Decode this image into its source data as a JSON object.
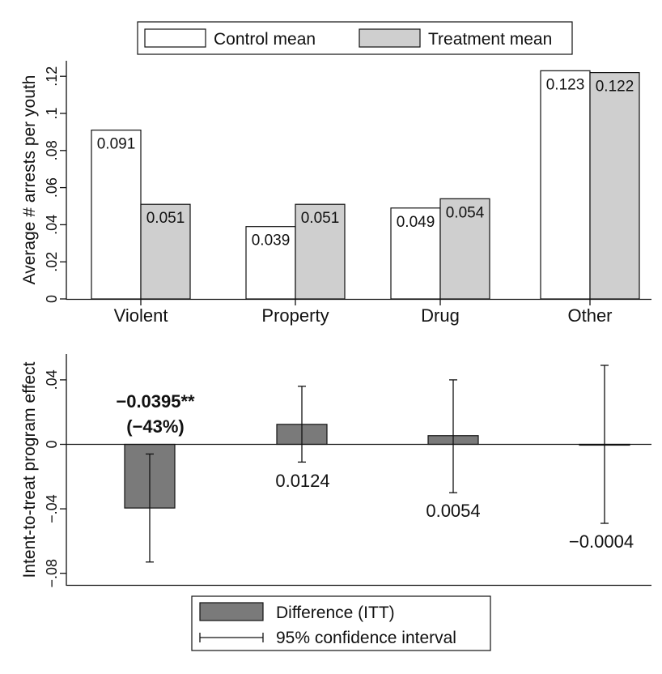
{
  "chart_data": [
    {
      "type": "bar",
      "categories": [
        "Violent",
        "Property",
        "Drug",
        "Other"
      ],
      "series": [
        {
          "name": "Control mean",
          "values": [
            0.091,
            0.039,
            0.049,
            0.123
          ],
          "color": "#ffffff"
        },
        {
          "name": "Treatment mean",
          "values": [
            0.051,
            0.051,
            0.054,
            0.122
          ],
          "color": "#cfcfcf"
        }
      ],
      "data_labels": [
        [
          "0.091",
          "0.039",
          "0.049",
          "0.123"
        ],
        [
          "0.051",
          "0.051",
          "0.054",
          "0.122"
        ]
      ],
      "ylabel": "Average # arrests per youth",
      "ylim": [
        0,
        0.13
      ],
      "yticks": [
        0,
        0.02,
        0.04,
        0.06,
        0.08,
        0.1,
        0.12
      ],
      "ytick_labels": [
        "0",
        ".02",
        ".04",
        ".06",
        ".08",
        ".1",
        ".12"
      ],
      "legend_position": "top"
    },
    {
      "type": "bar",
      "categories": [
        "Violent",
        "Property",
        "Drug",
        "Other"
      ],
      "series": [
        {
          "name": "Difference (ITT)",
          "values": [
            -0.0395,
            0.0124,
            0.0054,
            -0.0004
          ],
          "color": "#7a7a7a"
        }
      ],
      "ci_series_name": "95% confidence interval",
      "ci_low": [
        -0.073,
        -0.011,
        -0.03,
        -0.049
      ],
      "ci_high": [
        -0.006,
        0.036,
        0.04,
        0.049
      ],
      "value_labels": [
        [
          "−0.0395**",
          "(−43%)"
        ],
        [
          "0.0124"
        ],
        [
          "0.0054"
        ],
        [
          "−0.0004"
        ]
      ],
      "ylabel": "Intent-to-treat program effect",
      "ylim": [
        -0.09,
        0.057
      ],
      "yticks": [
        -0.08,
        -0.04,
        0,
        0.04
      ],
      "ytick_labels": [
        "−.08",
        "−.04",
        "0",
        ".04"
      ],
      "legend_position": "bottom"
    }
  ]
}
